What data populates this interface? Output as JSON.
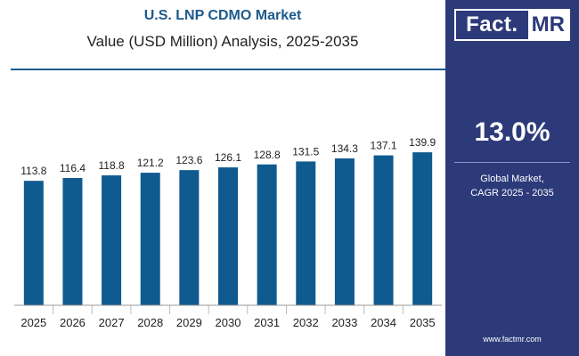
{
  "header": {
    "title": "U.S. LNP CDMO Market",
    "subtitle": "Value (USD Million) Analysis, 2025-2035"
  },
  "sidebar": {
    "logo_part1": "Fact.",
    "logo_part2": "MR",
    "cagr_value": "13.0%",
    "cagr_label_line1": "Global Market,",
    "cagr_label_line2": "CAGR 2025 - 2035",
    "website": "www.factmr.com"
  },
  "colors": {
    "bar": "#0f5a8f",
    "title": "#1d5a8c",
    "sidebar_bg": "#2d3a7a"
  },
  "chart_data": {
    "type": "bar",
    "title": "U.S. LNP CDMO Market",
    "subtitle": "Value (USD Million) Analysis, 2025-2035",
    "categories": [
      "2025",
      "2026",
      "2027",
      "2028",
      "2029",
      "2030",
      "2031",
      "2032",
      "2033",
      "2034",
      "2035"
    ],
    "values": [
      113.8,
      116.4,
      118.8,
      121.2,
      123.6,
      126.1,
      128.8,
      131.5,
      134.3,
      137.1,
      139.9
    ],
    "data_labels": [
      "113.8",
      "116.4",
      "118.8",
      "121.2",
      "123.6",
      "126.1",
      "128.8",
      "131.5",
      "134.3",
      "137.1",
      "139.9"
    ],
    "xlabel": "",
    "ylabel": "",
    "ylim": [
      0,
      160
    ],
    "grid": false,
    "legend": "none"
  }
}
